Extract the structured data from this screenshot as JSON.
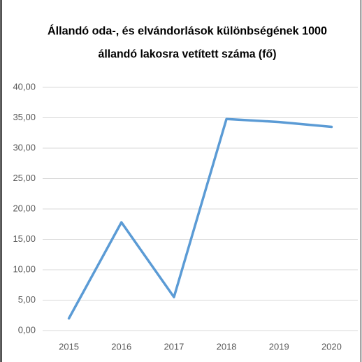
{
  "chart_data": {
    "type": "line",
    "title": [
      "Állandó oda-, és elvándorlások különbségének 1000",
      "állandó lakosra vetített száma (fő)"
    ],
    "categories": [
      "2015",
      "2016",
      "2017",
      "2018",
      "2019",
      "2020"
    ],
    "series": [
      {
        "name": null,
        "color": "#5b9bd5",
        "values": [
          2.0,
          17.8,
          5.5,
          34.8,
          34.3,
          33.5
        ]
      }
    ],
    "ylim": [
      0,
      40
    ],
    "yticks": [
      {
        "value": 0,
        "label": "0,00"
      },
      {
        "value": 5,
        "label": "5,00"
      },
      {
        "value": 10,
        "label": "10,00"
      },
      {
        "value": 15,
        "label": "15,00"
      },
      {
        "value": 20,
        "label": "20,00"
      },
      {
        "value": 25,
        "label": "25,00"
      },
      {
        "value": 30,
        "label": "30,00"
      },
      {
        "value": 35,
        "label": "35,00"
      },
      {
        "value": 40,
        "label": "40,00"
      }
    ],
    "grid": true
  }
}
